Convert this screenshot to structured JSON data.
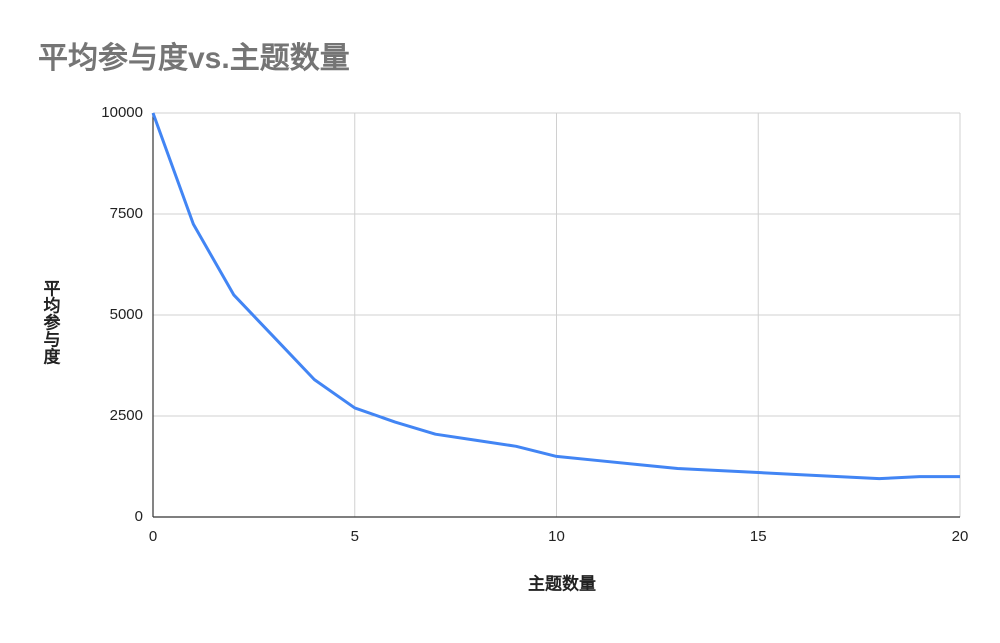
{
  "chart_data": {
    "type": "line",
    "title": "平均参与度vs.主题数量",
    "x_label": "主题数量",
    "y_label": "平均参与度",
    "x": [
      0,
      1,
      2,
      3,
      4,
      5,
      6,
      7,
      8,
      9,
      10,
      11,
      12,
      13,
      14,
      15,
      16,
      17,
      18,
      19,
      20
    ],
    "series": [
      {
        "name": "平均参与度",
        "color": "#4285f4",
        "values": [
          10000,
          7250,
          5500,
          4450,
          3400,
          2700,
          2350,
          2050,
          1900,
          1750,
          1500,
          1400,
          1300,
          1200,
          1150,
          1100,
          1050,
          1000,
          950,
          1000,
          1000
        ]
      }
    ],
    "xlim": [
      0,
      20
    ],
    "xticks": [
      0,
      5,
      10,
      15,
      20
    ],
    "ylim": [
      0,
      10000
    ],
    "yticks": [
      0,
      2500,
      5000,
      7500,
      10000
    ],
    "grid": true
  }
}
